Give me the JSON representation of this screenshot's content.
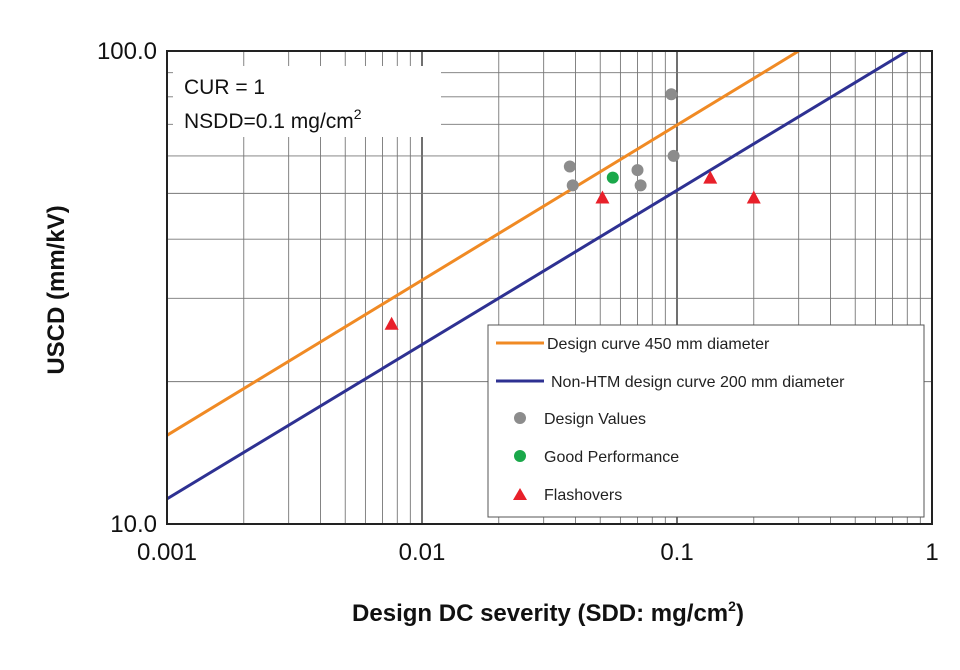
{
  "chart_data": {
    "type": "scatter",
    "title": "",
    "xlabel": "Design DC severity (SDD: mg/cm",
    "xlabel_sup": "2",
    "xlabel_end": ")",
    "ylabel": "USCD (mm/kV)",
    "xscale": "log",
    "yscale": "log",
    "xlim": [
      0.001,
      1
    ],
    "ylim": [
      10,
      100
    ],
    "x_tick_labels": [
      "0.001",
      "0.01",
      "0.1",
      "1"
    ],
    "y_tick_labels": [
      "10.0",
      "100.0"
    ],
    "grid": true,
    "legend_position": "lower-right",
    "annotation": {
      "line1": "CUR = 1",
      "line2": "NSDD=0.1 mg/cm",
      "line2_sup": "2"
    },
    "series": [
      {
        "name": "Design curve 450 mm diameter",
        "kind": "line",
        "color": "#f08a24",
        "x": [
          0.001,
          0.3
        ],
        "y": [
          15.4,
          100
        ]
      },
      {
        "name": "Non-HTM design curve 200 mm diameter",
        "kind": "line",
        "color": "#2e3192",
        "x": [
          0.001,
          0.8
        ],
        "y": [
          11.3,
          100
        ]
      },
      {
        "name": "Design Values",
        "kind": "scatter",
        "marker": "circle",
        "color": "#8c8c8c",
        "x": [
          0.038,
          0.039,
          0.07,
          0.072,
          0.095,
          0.097
        ],
        "y": [
          57,
          52,
          56,
          52,
          81,
          60
        ]
      },
      {
        "name": "Good Performance",
        "kind": "scatter",
        "marker": "circle",
        "color": "#1aa84a",
        "x": [
          0.056
        ],
        "y": [
          54
        ]
      },
      {
        "name": "Flashovers",
        "kind": "scatter",
        "marker": "triangle",
        "color": "#e8202a",
        "x": [
          0.0076,
          0.051,
          0.135,
          0.2
        ],
        "y": [
          26.5,
          49,
          54,
          49
        ]
      }
    ]
  }
}
